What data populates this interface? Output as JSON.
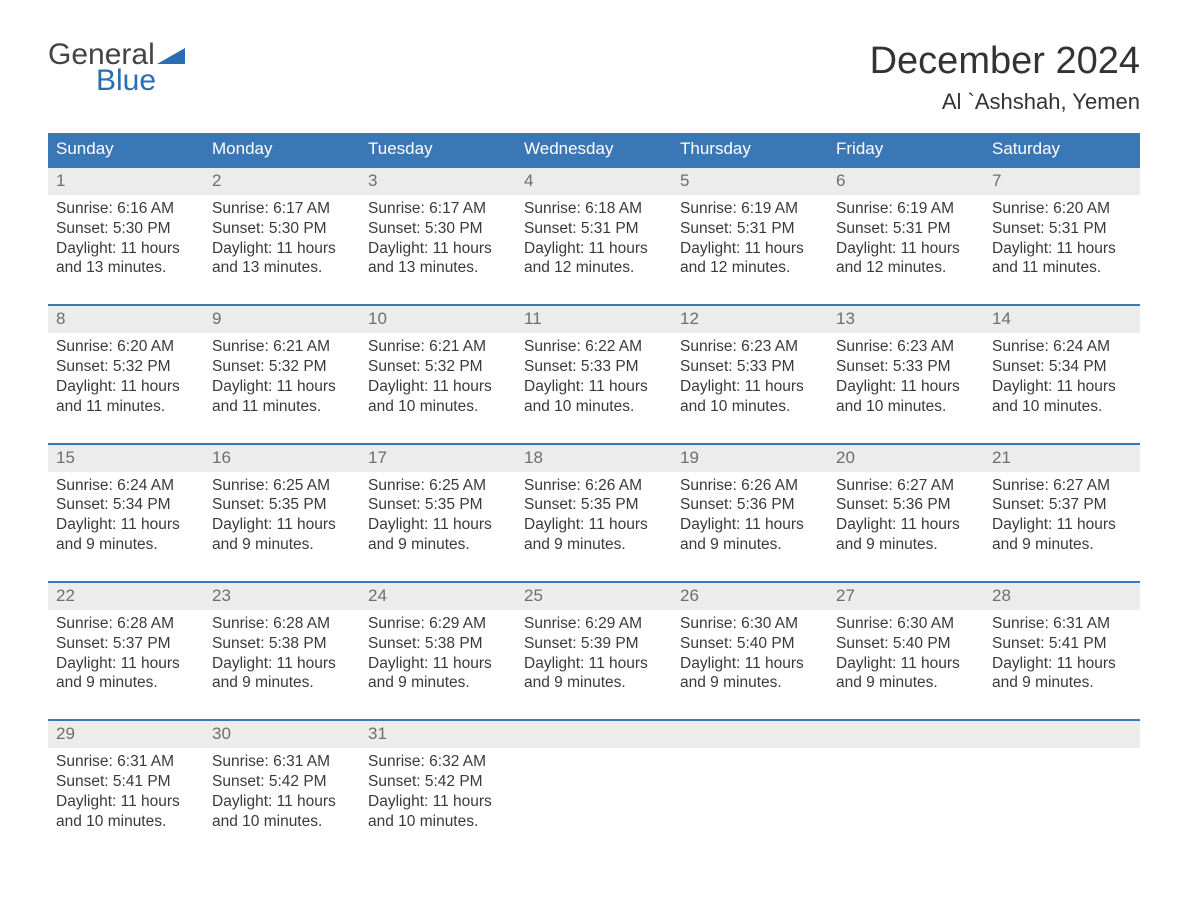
{
  "logo": {
    "line1": "General",
    "line2": "Blue"
  },
  "title": "December 2024",
  "location": "Al `Ashshah, Yemen",
  "colors": {
    "header_bg": "#3a77b7",
    "header_border": "#3a77b7",
    "daynum_bg": "#ececec",
    "daynum_text": "#6e6e6e",
    "body_text": "#3a3a3a",
    "logo_blue": "#2a6db3"
  },
  "weekdays": [
    "Sunday",
    "Monday",
    "Tuesday",
    "Wednesday",
    "Thursday",
    "Friday",
    "Saturday"
  ],
  "weeks": [
    [
      {
        "n": "1",
        "sunrise": "6:16 AM",
        "sunset": "5:30 PM",
        "daylight": "11 hours and 13 minutes."
      },
      {
        "n": "2",
        "sunrise": "6:17 AM",
        "sunset": "5:30 PM",
        "daylight": "11 hours and 13 minutes."
      },
      {
        "n": "3",
        "sunrise": "6:17 AM",
        "sunset": "5:30 PM",
        "daylight": "11 hours and 13 minutes."
      },
      {
        "n": "4",
        "sunrise": "6:18 AM",
        "sunset": "5:31 PM",
        "daylight": "11 hours and 12 minutes."
      },
      {
        "n": "5",
        "sunrise": "6:19 AM",
        "sunset": "5:31 PM",
        "daylight": "11 hours and 12 minutes."
      },
      {
        "n": "6",
        "sunrise": "6:19 AM",
        "sunset": "5:31 PM",
        "daylight": "11 hours and 12 minutes."
      },
      {
        "n": "7",
        "sunrise": "6:20 AM",
        "sunset": "5:31 PM",
        "daylight": "11 hours and 11 minutes."
      }
    ],
    [
      {
        "n": "8",
        "sunrise": "6:20 AM",
        "sunset": "5:32 PM",
        "daylight": "11 hours and 11 minutes."
      },
      {
        "n": "9",
        "sunrise": "6:21 AM",
        "sunset": "5:32 PM",
        "daylight": "11 hours and 11 minutes."
      },
      {
        "n": "10",
        "sunrise": "6:21 AM",
        "sunset": "5:32 PM",
        "daylight": "11 hours and 10 minutes."
      },
      {
        "n": "11",
        "sunrise": "6:22 AM",
        "sunset": "5:33 PM",
        "daylight": "11 hours and 10 minutes."
      },
      {
        "n": "12",
        "sunrise": "6:23 AM",
        "sunset": "5:33 PM",
        "daylight": "11 hours and 10 minutes."
      },
      {
        "n": "13",
        "sunrise": "6:23 AM",
        "sunset": "5:33 PM",
        "daylight": "11 hours and 10 minutes."
      },
      {
        "n": "14",
        "sunrise": "6:24 AM",
        "sunset": "5:34 PM",
        "daylight": "11 hours and 10 minutes."
      }
    ],
    [
      {
        "n": "15",
        "sunrise": "6:24 AM",
        "sunset": "5:34 PM",
        "daylight": "11 hours and 9 minutes."
      },
      {
        "n": "16",
        "sunrise": "6:25 AM",
        "sunset": "5:35 PM",
        "daylight": "11 hours and 9 minutes."
      },
      {
        "n": "17",
        "sunrise": "6:25 AM",
        "sunset": "5:35 PM",
        "daylight": "11 hours and 9 minutes."
      },
      {
        "n": "18",
        "sunrise": "6:26 AM",
        "sunset": "5:35 PM",
        "daylight": "11 hours and 9 minutes."
      },
      {
        "n": "19",
        "sunrise": "6:26 AM",
        "sunset": "5:36 PM",
        "daylight": "11 hours and 9 minutes."
      },
      {
        "n": "20",
        "sunrise": "6:27 AM",
        "sunset": "5:36 PM",
        "daylight": "11 hours and 9 minutes."
      },
      {
        "n": "21",
        "sunrise": "6:27 AM",
        "sunset": "5:37 PM",
        "daylight": "11 hours and 9 minutes."
      }
    ],
    [
      {
        "n": "22",
        "sunrise": "6:28 AM",
        "sunset": "5:37 PM",
        "daylight": "11 hours and 9 minutes."
      },
      {
        "n": "23",
        "sunrise": "6:28 AM",
        "sunset": "5:38 PM",
        "daylight": "11 hours and 9 minutes."
      },
      {
        "n": "24",
        "sunrise": "6:29 AM",
        "sunset": "5:38 PM",
        "daylight": "11 hours and 9 minutes."
      },
      {
        "n": "25",
        "sunrise": "6:29 AM",
        "sunset": "5:39 PM",
        "daylight": "11 hours and 9 minutes."
      },
      {
        "n": "26",
        "sunrise": "6:30 AM",
        "sunset": "5:40 PM",
        "daylight": "11 hours and 9 minutes."
      },
      {
        "n": "27",
        "sunrise": "6:30 AM",
        "sunset": "5:40 PM",
        "daylight": "11 hours and 9 minutes."
      },
      {
        "n": "28",
        "sunrise": "6:31 AM",
        "sunset": "5:41 PM",
        "daylight": "11 hours and 9 minutes."
      }
    ],
    [
      {
        "n": "29",
        "sunrise": "6:31 AM",
        "sunset": "5:41 PM",
        "daylight": "11 hours and 10 minutes."
      },
      {
        "n": "30",
        "sunrise": "6:31 AM",
        "sunset": "5:42 PM",
        "daylight": "11 hours and 10 minutes."
      },
      {
        "n": "31",
        "sunrise": "6:32 AM",
        "sunset": "5:42 PM",
        "daylight": "11 hours and 10 minutes."
      },
      null,
      null,
      null,
      null
    ]
  ],
  "labels": {
    "sunrise": "Sunrise:",
    "sunset": "Sunset:",
    "daylight": "Daylight:"
  }
}
